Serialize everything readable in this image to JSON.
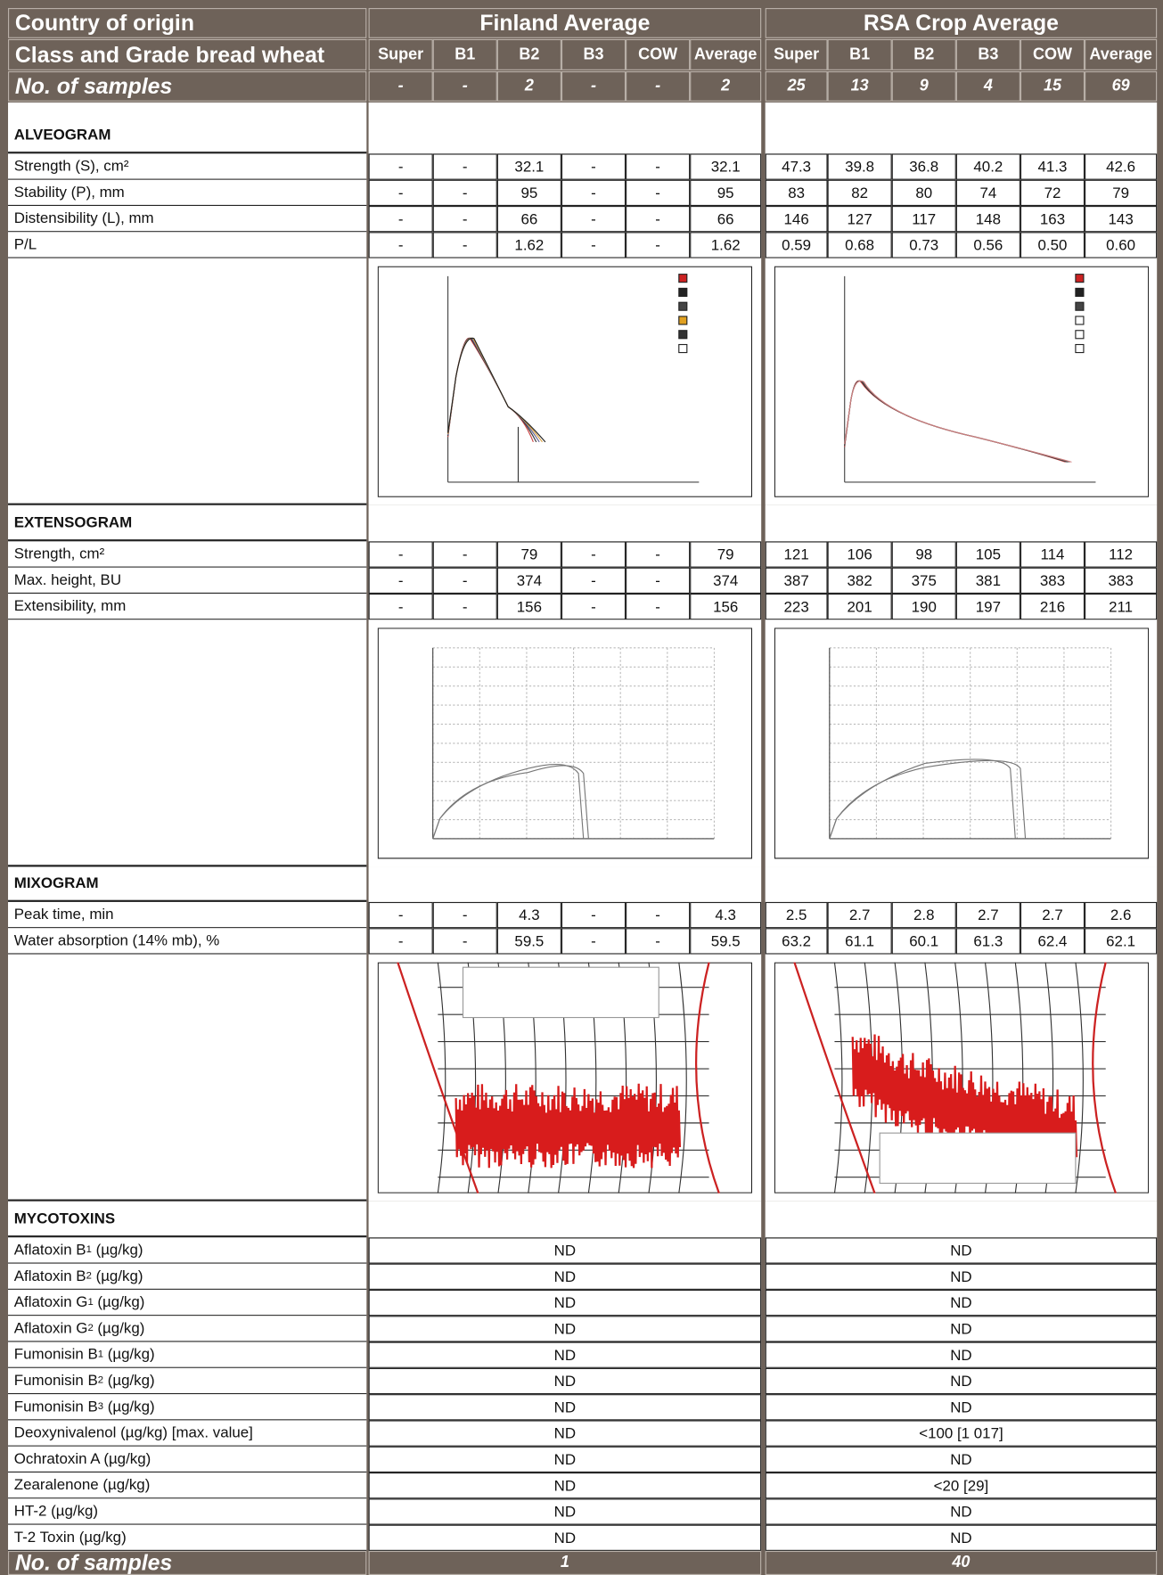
{
  "header": {
    "country_label": "Country of origin",
    "finland": "Finland Average",
    "rsa": "RSA Crop Average",
    "class_label": "Class and Grade bread wheat",
    "classes": [
      "Super",
      "B1",
      "B2",
      "B3",
      "COW",
      "Average"
    ],
    "samples_label": "No. of samples",
    "finland_samples": [
      "-",
      "-",
      "2",
      "-",
      "-",
      "2"
    ],
    "rsa_samples": [
      "25",
      "13",
      "9",
      "4",
      "15",
      "69"
    ]
  },
  "sections": [
    {
      "title": "ALVEOGRAM",
      "rows": [
        {
          "name": "Strength (S), cm²",
          "finland": [
            "-",
            "-",
            "32.1",
            "-",
            "-",
            "32.1"
          ],
          "rsa": [
            "47.3",
            "39.8",
            "36.8",
            "40.2",
            "41.3",
            "42.6"
          ]
        },
        {
          "name": "Stability (P), mm",
          "finland": [
            "-",
            "-",
            "95",
            "-",
            "-",
            "95"
          ],
          "rsa": [
            "83",
            "82",
            "80",
            "74",
            "72",
            "79"
          ]
        },
        {
          "name": "Distensibility (L), mm",
          "finland": [
            "-",
            "-",
            "66",
            "-",
            "-",
            "66"
          ],
          "rsa": [
            "146",
            "127",
            "117",
            "148",
            "163",
            "143"
          ]
        },
        {
          "name": "P/L",
          "finland": [
            "-",
            "-",
            "1.62",
            "-",
            "-",
            "1.62"
          ],
          "rsa": [
            "0.59",
            "0.68",
            "0.73",
            "0.56",
            "0.50",
            "0.60"
          ]
        }
      ]
    },
    {
      "title": "EXTENSOGRAM",
      "rows": [
        {
          "name": "Strength, cm²",
          "finland": [
            "-",
            "-",
            "79",
            "-",
            "-",
            "79"
          ],
          "rsa": [
            "121",
            "106",
            "98",
            "105",
            "114",
            "112"
          ]
        },
        {
          "name": "Max. height, BU",
          "finland": [
            "-",
            "-",
            "374",
            "-",
            "-",
            "374"
          ],
          "rsa": [
            "387",
            "382",
            "375",
            "381",
            "383",
            "383"
          ]
        },
        {
          "name": "Extensibility, mm",
          "finland": [
            "-",
            "-",
            "156",
            "-",
            "-",
            "156"
          ],
          "rsa": [
            "223",
            "201",
            "190",
            "197",
            "216",
            "211"
          ]
        }
      ]
    },
    {
      "title": "MIXOGRAM",
      "rows": [
        {
          "name": "Peak time, min",
          "finland": [
            "-",
            "-",
            "4.3",
            "-",
            "-",
            "4.3"
          ],
          "rsa": [
            "2.5",
            "2.7",
            "2.8",
            "2.7",
            "2.7",
            "2.6"
          ]
        },
        {
          "name": "Water absorption (14% mb), %",
          "finland": [
            "-",
            "-",
            "59.5",
            "-",
            "-",
            "59.5"
          ],
          "rsa": [
            "63.2",
            "61.1",
            "60.1",
            "61.3",
            "62.4",
            "62.1"
          ]
        }
      ]
    },
    {
      "title": "MYCOTOXINS",
      "rows": [
        {
          "name": "Aflatoxin B",
          "sub": "1",
          "unit": "(µg/kg)",
          "finland": "ND",
          "rsa": "ND"
        },
        {
          "name": "Aflatoxin B",
          "sub": "2",
          "unit": "(µg/kg)",
          "finland": "ND",
          "rsa": "ND"
        },
        {
          "name": "Aflatoxin G",
          "sub": "1",
          "unit": "(µg/kg)",
          "finland": "ND",
          "rsa": "ND"
        },
        {
          "name": "Aflatoxin G",
          "sub": "2",
          "unit": "(µg/kg)",
          "finland": "ND",
          "rsa": "ND"
        },
        {
          "name": "Fumonisin B",
          "sub": "1",
          "unit": "(µg/kg)",
          "finland": "ND",
          "rsa": "ND"
        },
        {
          "name": "Fumonisin B",
          "sub": "2",
          "unit": "(µg/kg)",
          "finland": "ND",
          "rsa": "ND"
        },
        {
          "name": "Fumonisin B",
          "sub": "3",
          "unit": "(µg/kg)",
          "finland": "ND",
          "rsa": "ND"
        },
        {
          "name": "Deoxynivalenol (µg/kg) [max. value]",
          "finland": "ND",
          "rsa": "<100 [1 017]"
        },
        {
          "name": "Ochratoxin A (µg/kg)",
          "finland": "ND",
          "rsa": "ND"
        },
        {
          "name": "Zearalenone (µg/kg)",
          "finland": "ND",
          "rsa": "<20 [29]"
        },
        {
          "name": "HT-2 (µg/kg)",
          "finland": "ND",
          "rsa": "ND"
        },
        {
          "name": "T-2 Toxin (µg/kg)",
          "finland": "ND",
          "rsa": "ND"
        }
      ]
    }
  ],
  "footer": {
    "finland_total": "1",
    "rsa_total": "40"
  }
}
